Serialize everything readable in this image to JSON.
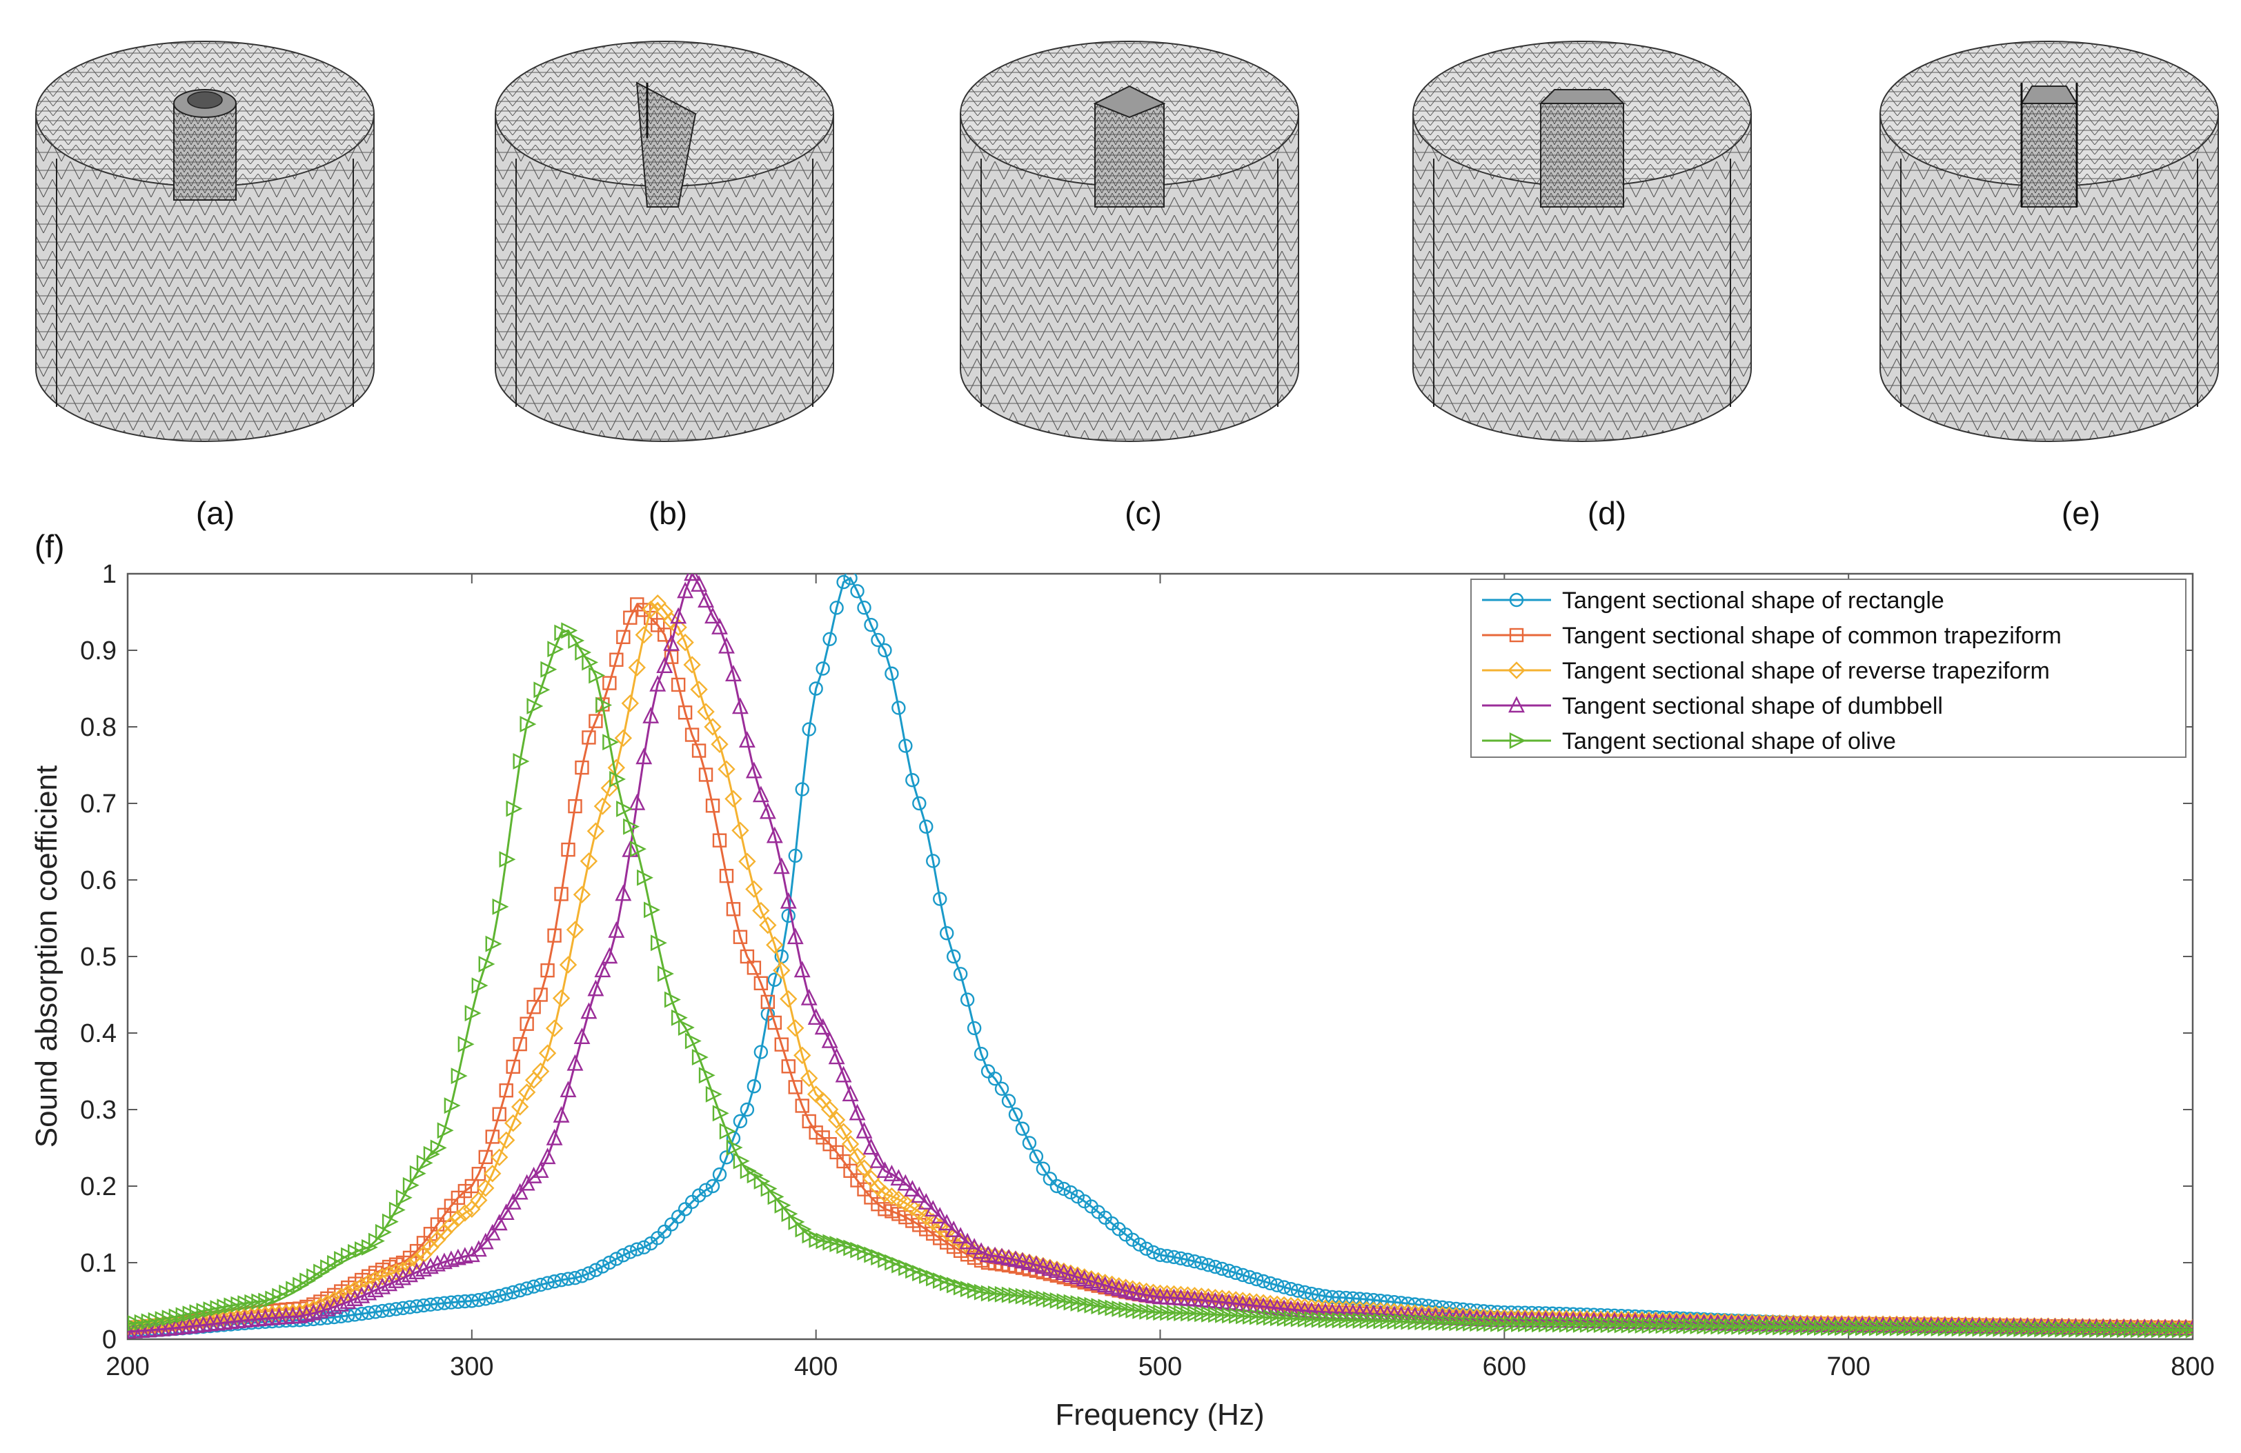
{
  "panel_labels": [
    "(a)",
    "(b)",
    "(c)",
    "(d)",
    "(e)"
  ],
  "chart_panel_label": "(f)",
  "chart_data": {
    "type": "line",
    "title": "",
    "xlabel": "Frequency (Hz)",
    "ylabel": "Sound absorption coefficient",
    "xlim": [
      200,
      800
    ],
    "ylim": [
      0,
      1
    ],
    "xticks": [
      200,
      300,
      400,
      500,
      600,
      700,
      800
    ],
    "yticks": [
      0,
      0.1,
      0.2,
      0.3,
      0.4,
      0.5,
      0.6,
      0.7,
      0.8,
      0.9,
      1
    ],
    "ytick_labels": [
      "0",
      "0.1",
      "0.2",
      "0.3",
      "0.4",
      "0.5",
      "0.6",
      "0.7",
      "0.8",
      "0.9",
      "1"
    ],
    "grid": false,
    "legend_position": "top-right",
    "series": [
      {
        "name": "Tangent sectional shape of rectangle",
        "color": "#1a9ac9",
        "marker": "circle",
        "x": [
          200,
          250,
          300,
          330,
          350,
          370,
          380,
          390,
          400,
          409,
          420,
          430,
          440,
          450,
          470,
          500,
          550,
          600,
          700,
          800
        ],
        "values": [
          0.01,
          0.025,
          0.05,
          0.08,
          0.12,
          0.2,
          0.3,
          0.5,
          0.85,
          1.0,
          0.9,
          0.7,
          0.5,
          0.35,
          0.2,
          0.11,
          0.055,
          0.035,
          0.02,
          0.015
        ]
      },
      {
        "name": "Tangent sectional shape of common trapeziform",
        "color": "#e8683a",
        "marker": "square",
        "x": [
          200,
          250,
          280,
          300,
          320,
          335,
          348,
          355,
          365,
          380,
          400,
          420,
          450,
          500,
          550,
          600,
          700,
          800
        ],
        "values": [
          0.015,
          0.04,
          0.1,
          0.2,
          0.45,
          0.8,
          0.96,
          0.93,
          0.78,
          0.5,
          0.27,
          0.17,
          0.1,
          0.055,
          0.035,
          0.025,
          0.02,
          0.015
        ]
      },
      {
        "name": "Tangent sectional shape of reverse trapeziform",
        "color": "#f5b230",
        "marker": "diamond",
        "x": [
          200,
          250,
          280,
          300,
          320,
          340,
          353,
          360,
          370,
          385,
          400,
          420,
          450,
          500,
          550,
          600,
          700,
          800
        ],
        "values": [
          0.015,
          0.035,
          0.09,
          0.17,
          0.35,
          0.72,
          0.965,
          0.93,
          0.8,
          0.55,
          0.32,
          0.19,
          0.11,
          0.06,
          0.04,
          0.028,
          0.02,
          0.015
        ]
      },
      {
        "name": "Tangent sectional shape of dumbbell",
        "color": "#9b2d99",
        "marker": "triangle-up",
        "x": [
          200,
          250,
          300,
          320,
          340,
          355,
          364,
          372,
          385,
          400,
          420,
          450,
          500,
          550,
          600,
          700,
          800
        ],
        "values": [
          0.01,
          0.03,
          0.11,
          0.22,
          0.5,
          0.87,
          1.0,
          0.93,
          0.7,
          0.42,
          0.22,
          0.11,
          0.055,
          0.035,
          0.025,
          0.018,
          0.014
        ]
      },
      {
        "name": "Tangent sectional shape of olive",
        "color": "#5fb532",
        "marker": "triangle-right",
        "x": [
          200,
          240,
          270,
          290,
          305,
          317,
          327,
          335,
          345,
          360,
          380,
          400,
          450,
          500,
          550,
          600,
          700,
          800
        ],
        "values": [
          0.02,
          0.05,
          0.12,
          0.25,
          0.5,
          0.82,
          0.93,
          0.88,
          0.68,
          0.42,
          0.22,
          0.13,
          0.06,
          0.035,
          0.025,
          0.02,
          0.015,
          0.012
        ]
      }
    ]
  }
}
